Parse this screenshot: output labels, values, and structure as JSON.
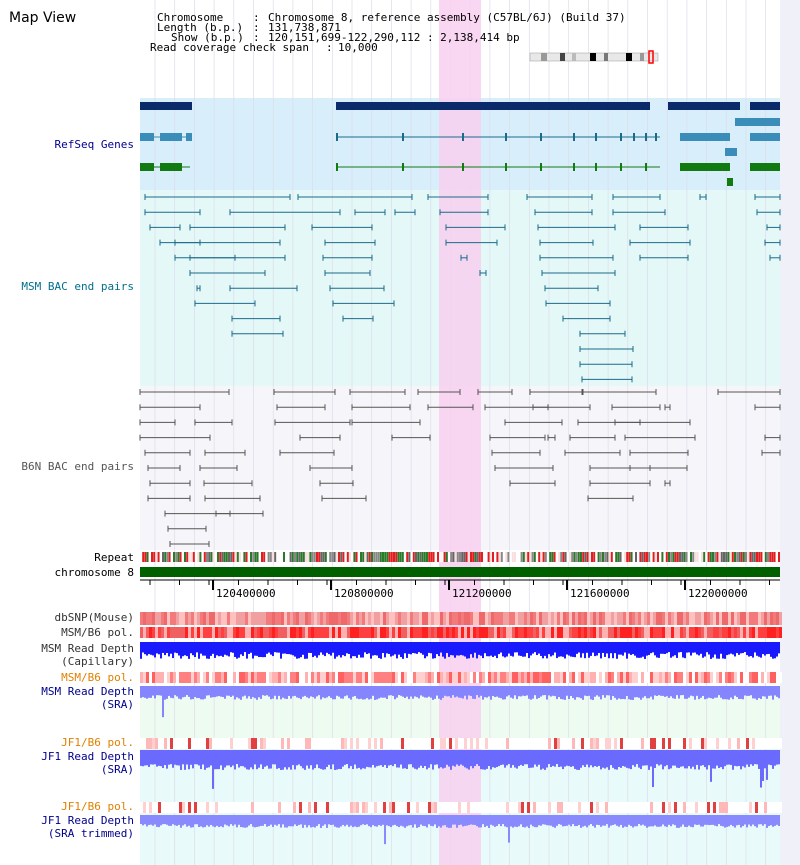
{
  "header": {
    "title": "Map View",
    "chromosome_key": "Chromosome",
    "chromosome_value": "Chromosome 8, reference assembly (C57BL/6J) (Build 37)",
    "length_key": "Length (b.p.)",
    "length_value": "131,738,871",
    "show_key": "Show (b.p.)",
    "show_value": "120,151,699-122,290,112 : 2,138,414 bp",
    "coverage_key": "Read coverage check span",
    "coverage_value": "10,000",
    "separator": ":"
  },
  "tracks": {
    "refseq": {
      "label": "RefSeq Genes",
      "color": "#00008b"
    },
    "msm_bac": {
      "label": "MSM BAC end pairs",
      "color": "#006f8a"
    },
    "b6n_bac": {
      "label": "B6N BAC end pairs",
      "color": "#333333"
    },
    "repeat": {
      "label": "Repeat"
    },
    "chromosome": {
      "label": "chromosome 8"
    },
    "dbsnp": {
      "label": "dbSNP(Mouse)",
      "color": "#333333"
    },
    "msm_b6_pol": {
      "label": "MSM/B6 pol.",
      "color": "#333333"
    },
    "msm_depth_cap": {
      "label1": "MSM Read Depth",
      "label2": "(Capillary)",
      "color": "#333333"
    },
    "msm_b6_pol_sra": {
      "label": "MSM/B6 pol.",
      "color": "#e08000"
    },
    "msm_depth_sra": {
      "label1": "MSM Read Depth",
      "label2": "(SRA)",
      "color": "#00008b"
    },
    "jf1_b6_pol": {
      "label": "JF1/B6 pol.",
      "color": "#e08000"
    },
    "jf1_depth_sra": {
      "label1": "JF1 Read Depth",
      "label2": "(SRA)",
      "color": "#00008b"
    },
    "jf1_b6_pol_trim": {
      "label": "JF1/B6 pol.",
      "color": "#e08000"
    },
    "jf1_depth_trim": {
      "label1": "JF1 Read Depth",
      "label2": "(SRA trimmed)",
      "color": "#00008b"
    }
  },
  "axis": {
    "ticks": [
      "120400000",
      "120800000",
      "121200000",
      "121600000",
      "122000000"
    ]
  },
  "colors": {
    "refseq_bg": "#d8eefa",
    "msm_bg": "#e4f8f8",
    "b6n_bg": "#f6f6fa",
    "highlight": "#f8d0f0",
    "repeat_red": "#e02020",
    "repeat_green": "#2a7a2a",
    "chromosome_bar": "#006000",
    "depth_blue": "#2020ff",
    "depth_lavender": "#8080ff"
  }
}
